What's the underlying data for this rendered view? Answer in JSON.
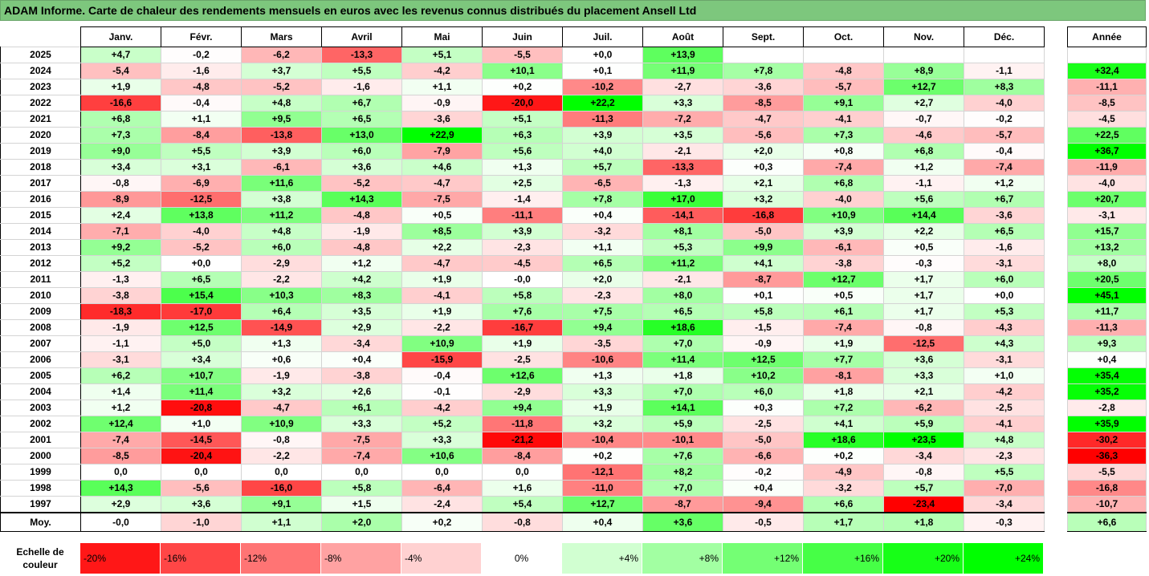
{
  "title": "ADAM Informe. Carte de chaleur des rendements mensuels en euros avec les revenus connus distribués du placement Ansell Ltd",
  "chart_data": {
    "type": "heatmap",
    "title": "ADAM Informe. Carte de chaleur des rendements mensuels en euros avec les revenus connus distribués du placement Ansell Ltd",
    "columns": [
      "Janv.",
      "Févr.",
      "Mars",
      "Avril",
      "Mai",
      "Juin",
      "Juil.",
      "Août",
      "Sept.",
      "Oct.",
      "Nov.",
      "Déc."
    ],
    "year_header": "Année",
    "rows": [
      {
        "label": "2025",
        "values": [
          "+4,7",
          "-0,2",
          "-6,2",
          "-13,3",
          "+5,1",
          "-5,5",
          "+0,0",
          "+13,9",
          "",
          "",
          "",
          ""
        ],
        "year": ""
      },
      {
        "label": "2024",
        "values": [
          "-5,4",
          "-1,6",
          "+3,7",
          "+5,5",
          "-4,2",
          "+10,1",
          "+0,1",
          "+11,9",
          "+7,8",
          "-4,8",
          "+8,9",
          "-1,1"
        ],
        "year": "+32,4"
      },
      {
        "label": "2023",
        "values": [
          "+1,9",
          "-4,8",
          "-5,2",
          "-1,6",
          "+1,1",
          "+0,2",
          "-10,2",
          "-2,7",
          "-3,6",
          "-5,7",
          "+12,7",
          "+8,3"
        ],
        "year": "-11,1"
      },
      {
        "label": "2022",
        "values": [
          "-16,6",
          "-0,4",
          "+4,8",
          "+6,7",
          "-0,9",
          "-20,0",
          "+22,2",
          "+3,3",
          "-8,5",
          "+9,1",
          "+2,7",
          "-4,0"
        ],
        "year": "-8,5"
      },
      {
        "label": "2021",
        "values": [
          "+6,8",
          "+1,1",
          "+9,5",
          "+6,5",
          "-3,6",
          "+5,1",
          "-11,3",
          "-7,2",
          "-4,7",
          "-4,1",
          "-0,7",
          "-0,2"
        ],
        "year": "-4,5"
      },
      {
        "label": "2020",
        "values": [
          "+7,3",
          "-8,4",
          "-13,8",
          "+13,0",
          "+22,9",
          "+6,3",
          "+3,9",
          "+3,5",
          "-5,6",
          "+7,3",
          "-4,6",
          "-5,7"
        ],
        "year": "+22,5"
      },
      {
        "label": "2019",
        "values": [
          "+9,0",
          "+5,5",
          "+3,9",
          "+6,0",
          "-7,9",
          "+5,6",
          "+4,0",
          "-2,1",
          "+2,0",
          "+0,8",
          "+6,8",
          "-0,4"
        ],
        "year": "+36,7"
      },
      {
        "label": "2018",
        "values": [
          "+3,4",
          "+3,1",
          "-6,1",
          "+3,6",
          "+4,6",
          "+1,3",
          "+5,7",
          "-13,3",
          "+0,3",
          "-7,4",
          "+1,2",
          "-7,4"
        ],
        "year": "-11,9"
      },
      {
        "label": "2017",
        "values": [
          "-0,8",
          "-6,9",
          "+11,6",
          "-5,2",
          "-4,7",
          "+2,5",
          "-6,5",
          "-1,3",
          "+2,1",
          "+6,8",
          "-1,1",
          "+1,2"
        ],
        "year": "-4,0"
      },
      {
        "label": "2016",
        "values": [
          "-8,9",
          "-12,5",
          "+3,8",
          "+14,3",
          "-7,5",
          "-1,4",
          "+7,8",
          "+17,0",
          "+3,2",
          "-4,0",
          "+5,6",
          "+6,7"
        ],
        "year": "+20,7"
      },
      {
        "label": "2015",
        "values": [
          "+2,4",
          "+13,8",
          "+11,2",
          "-4,8",
          "+0,5",
          "-11,1",
          "+0,4",
          "-14,1",
          "-16,8",
          "+10,9",
          "+14,4",
          "-3,6"
        ],
        "year": "-3,1"
      },
      {
        "label": "2014",
        "values": [
          "-7,1",
          "-4,0",
          "+4,8",
          "-1,9",
          "+8,5",
          "+3,9",
          "-3,2",
          "+8,1",
          "-5,0",
          "+3,9",
          "+2,2",
          "+6,5"
        ],
        "year": "+15,7"
      },
      {
        "label": "2013",
        "values": [
          "+9,2",
          "-5,2",
          "+6,0",
          "-4,8",
          "+2,2",
          "-2,3",
          "+1,1",
          "+5,3",
          "+9,9",
          "-6,1",
          "+0,5",
          "-1,6"
        ],
        "year": "+13,2"
      },
      {
        "label": "2012",
        "values": [
          "+5,2",
          "+0,0",
          "-2,9",
          "+1,2",
          "-4,7",
          "-4,5",
          "+6,5",
          "+11,2",
          "+4,1",
          "-3,8",
          "-0,3",
          "-3,1"
        ],
        "year": "+8,0"
      },
      {
        "label": "2011",
        "values": [
          "-1,3",
          "+6,5",
          "-2,2",
          "+4,2",
          "+1,9",
          "-0,0",
          "+2,0",
          "-2,1",
          "-8,7",
          "+12,7",
          "+1,7",
          "+6,0"
        ],
        "year": "+20,5"
      },
      {
        "label": "2010",
        "values": [
          "-3,8",
          "+15,4",
          "+10,3",
          "+8,3",
          "-4,1",
          "+5,8",
          "-2,3",
          "+8,0",
          "+0,1",
          "+0,5",
          "+1,7",
          "+0,0"
        ],
        "year": "+45,1"
      },
      {
        "label": "2009",
        "values": [
          "-18,3",
          "-17,0",
          "+6,4",
          "+3,5",
          "+1,9",
          "+7,6",
          "+7,5",
          "+6,5",
          "+5,8",
          "+6,1",
          "+1,7",
          "+5,3"
        ],
        "year": "+11,7"
      },
      {
        "label": "2008",
        "values": [
          "-1,9",
          "+12,5",
          "-14,9",
          "+2,9",
          "-2,2",
          "-16,7",
          "+9,4",
          "+18,6",
          "-1,5",
          "-7,4",
          "-0,8",
          "-4,3"
        ],
        "year": "-11,3"
      },
      {
        "label": "2007",
        "values": [
          "-1,1",
          "+5,0",
          "+1,3",
          "-3,4",
          "+10,9",
          "+1,9",
          "-3,5",
          "+7,0",
          "-0,9",
          "+1,9",
          "-12,5",
          "+4,3"
        ],
        "year": "+9,3"
      },
      {
        "label": "2006",
        "values": [
          "-3,1",
          "+3,4",
          "+0,6",
          "+0,4",
          "-15,9",
          "-2,5",
          "-10,6",
          "+11,4",
          "+12,5",
          "+7,7",
          "+3,6",
          "-3,1"
        ],
        "year": "+0,4"
      },
      {
        "label": "2005",
        "values": [
          "+6,2",
          "+10,7",
          "-1,9",
          "-3,8",
          "-0,4",
          "+12,6",
          "+1,3",
          "+1,8",
          "+10,2",
          "-8,1",
          "+3,3",
          "+1,0"
        ],
        "year": "+35,4"
      },
      {
        "label": "2004",
        "values": [
          "+1,4",
          "+11,4",
          "+3,2",
          "+2,6",
          "-0,1",
          "-2,9",
          "+3,3",
          "+7,0",
          "+6,0",
          "+1,8",
          "+2,1",
          "-4,2"
        ],
        "year": "+35,2"
      },
      {
        "label": "2003",
        "values": [
          "+1,2",
          "-20,8",
          "-4,7",
          "+6,1",
          "-4,2",
          "+9,4",
          "+1,9",
          "+14,1",
          "+0,3",
          "+7,2",
          "-6,2",
          "-2,5"
        ],
        "year": "-2,8"
      },
      {
        "label": "2002",
        "values": [
          "+12,4",
          "+1,0",
          "+10,9",
          "+3,3",
          "+5,2",
          "-11,8",
          "+3,2",
          "+5,9",
          "-2,5",
          "+4,1",
          "+5,9",
          "-4,1"
        ],
        "year": "+35,9"
      },
      {
        "label": "2001",
        "values": [
          "-7,4",
          "-14,5",
          "-0,8",
          "-7,5",
          "+3,3",
          "-21,2",
          "-10,4",
          "-10,1",
          "-5,0",
          "+18,6",
          "+23,5",
          "+4,8"
        ],
        "year": "-30,2"
      },
      {
        "label": "2000",
        "values": [
          "-8,5",
          "-20,4",
          "-2,2",
          "-7,4",
          "+10,6",
          "-8,4",
          "+0,2",
          "+7,6",
          "-6,6",
          "+0,2",
          "-3,4",
          "-2,3"
        ],
        "year": "-36,3"
      },
      {
        "label": "1999",
        "values": [
          "0,0",
          "0,0",
          "0,0",
          "0,0",
          "0,0",
          "0,0",
          "-12,1",
          "+8,2",
          "-0,2",
          "-4,9",
          "-0,8",
          "+5,5"
        ],
        "year": "-5,5"
      },
      {
        "label": "1998",
        "values": [
          "+14,3",
          "-5,6",
          "-16,0",
          "+5,8",
          "-6,4",
          "+1,6",
          "-11,0",
          "+7,0",
          "+0,4",
          "-3,2",
          "+5,7",
          "-7,0"
        ],
        "year": "-16,8"
      },
      {
        "label": "1997",
        "values": [
          "+2,9",
          "+3,6",
          "+9,1",
          "+1,5",
          "-2,4",
          "+5,4",
          "+12,7",
          "-8,7",
          "-9,4",
          "+6,6",
          "-23,4",
          "-3,4"
        ],
        "year": "-10,7"
      }
    ],
    "average": {
      "label": "Moy.",
      "values": [
        "-0,0",
        "-1,0",
        "+1,1",
        "+2,0",
        "+0,2",
        "-0,8",
        "+0,4",
        "+3,6",
        "-0,5",
        "+1,7",
        "+1,8",
        "-0,3"
      ],
      "year": "+6,6"
    },
    "legend": {
      "label": "Echelle de couleur",
      "stops": [
        {
          "text": "-20%",
          "value": -20
        },
        {
          "text": "-16%",
          "value": -16
        },
        {
          "text": "-12%",
          "value": -12
        },
        {
          "text": "-8%",
          "value": -8
        },
        {
          "text": "-4%",
          "value": -4
        },
        {
          "text": "0%",
          "value": 0
        },
        {
          "text": "+4%",
          "value": 4
        },
        {
          "text": "+8%",
          "value": 8
        },
        {
          "text": "+12%",
          "value": 12
        },
        {
          "text": "+16%",
          "value": 16
        },
        {
          "text": "+20%",
          "value": 20
        },
        {
          "text": "+24%",
          "value": 24
        }
      ]
    },
    "colors": {
      "negative_max": "#ff0000",
      "neutral": "#ffffff",
      "positive_max": "#00ff00"
    },
    "monthly_scale_max": 22,
    "yearly_scale_max": 36
  }
}
